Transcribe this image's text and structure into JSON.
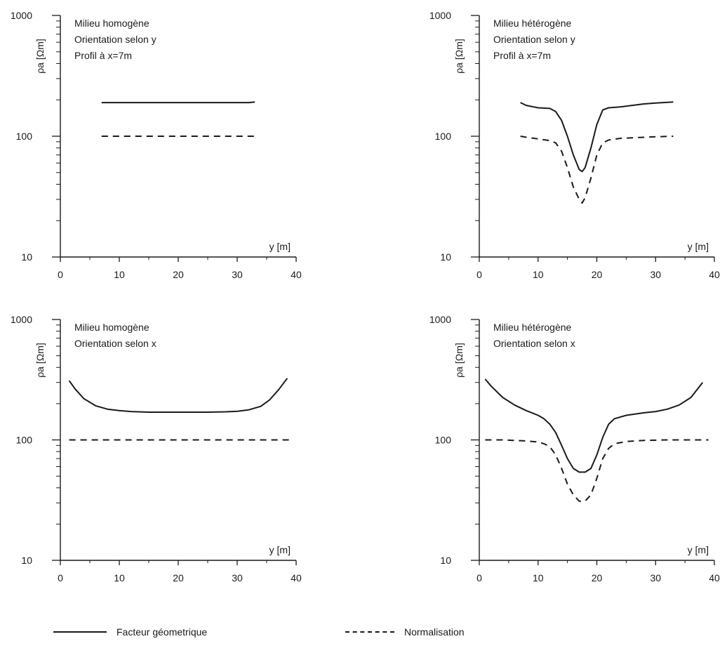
{
  "legend": {
    "solid_label": "Facteur géometrique",
    "dashed_label": "Normalisation"
  },
  "chart_data": [
    {
      "type": "line",
      "annotations": [
        "Milieu  homogène",
        "Orientation selon y",
        "Profil à x=7m"
      ],
      "xlabel": "y [m]",
      "ylabel": "ρa [Ωm]",
      "xlim": [
        0,
        40
      ],
      "ylim": [
        10,
        1000
      ],
      "yscale": "log",
      "x_ticks": [
        0,
        10,
        20,
        30,
        40
      ],
      "y_ticks": [
        10,
        100,
        1000
      ],
      "grid": false,
      "series": [
        {
          "style": "solid",
          "x": [
            7,
            10,
            15,
            20,
            25,
            30,
            32,
            33
          ],
          "y": [
            190,
            190,
            190,
            190,
            190,
            190,
            190,
            192
          ]
        },
        {
          "style": "dashed",
          "x": [
            7,
            10,
            15,
            20,
            25,
            30,
            33
          ],
          "y": [
            100,
            100,
            100,
            100,
            100,
            100,
            100
          ]
        }
      ]
    },
    {
      "type": "line",
      "annotations": [
        "Milieu  hétérogène",
        "Orientation selon y",
        "Profil à x=7m"
      ],
      "xlabel": "y [m]",
      "ylabel": "ρa [Ωm]",
      "xlim": [
        0,
        40
      ],
      "ylim": [
        10,
        1000
      ],
      "yscale": "log",
      "x_ticks": [
        0,
        10,
        20,
        30,
        40
      ],
      "y_ticks": [
        10,
        100,
        1000
      ],
      "grid": false,
      "series": [
        {
          "style": "solid",
          "x": [
            7,
            8,
            10,
            12,
            13,
            14,
            15,
            16,
            17,
            17.5,
            18,
            19,
            20,
            21,
            22,
            24,
            26,
            28,
            30,
            33
          ],
          "y": [
            190,
            180,
            172,
            170,
            160,
            135,
            100,
            70,
            53,
            51,
            55,
            80,
            125,
            165,
            172,
            175,
            180,
            185,
            188,
            192
          ]
        },
        {
          "style": "dashed",
          "x": [
            7,
            8,
            10,
            12,
            13,
            14,
            15,
            16,
            17,
            17.5,
            18,
            19,
            20,
            21,
            22,
            24,
            26,
            28,
            30,
            33
          ],
          "y": [
            100,
            98,
            95,
            92,
            88,
            75,
            55,
            38,
            30,
            28,
            31,
            45,
            70,
            88,
            93,
            96,
            97,
            98,
            99,
            100
          ]
        }
      ]
    },
    {
      "type": "line",
      "annotations": [
        "Milieu  homogène",
        "Orientation selon x"
      ],
      "xlabel": "y [m]",
      "ylabel": "ρa [Ωm]",
      "xlim": [
        0,
        40
      ],
      "ylim": [
        10,
        1000
      ],
      "yscale": "log",
      "x_ticks": [
        0,
        10,
        20,
        30,
        40
      ],
      "y_ticks": [
        10,
        100,
        1000
      ],
      "grid": false,
      "series": [
        {
          "style": "solid",
          "x": [
            1.5,
            2.5,
            4,
            6,
            8,
            10,
            12,
            15,
            20,
            25,
            28,
            30,
            32,
            34,
            35.5,
            37,
            38.5
          ],
          "y": [
            310,
            265,
            220,
            192,
            180,
            175,
            172,
            170,
            170,
            170,
            171,
            173,
            178,
            190,
            215,
            260,
            325
          ]
        },
        {
          "style": "dashed",
          "x": [
            1.5,
            5,
            10,
            15,
            20,
            25,
            30,
            35,
            39
          ],
          "y": [
            100,
            100,
            100,
            100,
            100,
            100,
            100,
            100,
            100
          ]
        }
      ]
    },
    {
      "type": "line",
      "annotations": [
        "Milieu  hétérogène",
        "Orientation selon x"
      ],
      "xlabel": "y [m]",
      "ylabel": "ρa [Ωm]",
      "xlim": [
        0,
        40
      ],
      "ylim": [
        10,
        1000
      ],
      "yscale": "log",
      "x_ticks": [
        0,
        10,
        20,
        30,
        40
      ],
      "y_ticks": [
        10,
        100,
        1000
      ],
      "grid": false,
      "series": [
        {
          "style": "solid",
          "x": [
            1,
            2,
            4,
            6,
            8,
            10,
            11,
            12,
            13,
            14,
            15,
            16,
            17,
            18,
            19,
            20,
            21,
            22,
            23,
            25,
            28,
            30,
            32,
            34,
            36,
            38
          ],
          "y": [
            320,
            280,
            225,
            195,
            175,
            160,
            150,
            135,
            115,
            90,
            70,
            58,
            54,
            54,
            58,
            75,
            105,
            135,
            150,
            160,
            168,
            172,
            180,
            195,
            225,
            300
          ]
        },
        {
          "style": "dashed",
          "x": [
            1,
            4,
            8,
            10,
            11,
            12,
            13,
            14,
            15,
            16,
            17,
            18,
            19,
            20,
            21,
            22,
            23,
            25,
            28,
            32,
            36,
            39
          ],
          "y": [
            100,
            100,
            98,
            96,
            93,
            88,
            75,
            58,
            43,
            35,
            31,
            31,
            35,
            48,
            70,
            85,
            93,
            97,
            99,
            100,
            100,
            100
          ]
        }
      ]
    }
  ]
}
